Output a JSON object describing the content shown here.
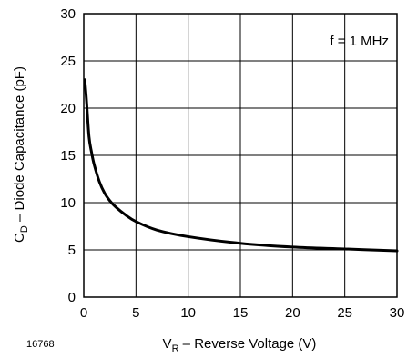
{
  "chart_data": {
    "type": "line",
    "title": "",
    "xlabel": {
      "main": "V",
      "sub": "R",
      "rest": " – Reverse Voltage (V)"
    },
    "ylabel": {
      "main": "C",
      "sub": "D",
      "rest": " – Diode Capacitance (pF)"
    },
    "xlim": [
      0,
      30
    ],
    "ylim": [
      0,
      30
    ],
    "xticks": [
      0,
      5,
      10,
      15,
      20,
      25,
      30
    ],
    "yticks": [
      0,
      5,
      10,
      15,
      20,
      25,
      30
    ],
    "xtick_labels": [
      "0",
      "5",
      "10",
      "15",
      "20",
      "25",
      "30"
    ],
    "ytick_labels": [
      "0",
      "5",
      "10",
      "15",
      "20",
      "25",
      "30"
    ],
    "grid": true,
    "annotation": "f = 1 MHz",
    "figure_id": "16768",
    "series": [
      {
        "color": "#000000",
        "x": [
          0.1,
          0.25,
          0.5,
          0.75,
          1,
          1.5,
          2,
          2.5,
          3,
          4,
          5,
          7,
          10,
          15,
          20,
          25,
          30
        ],
        "y": [
          23,
          21,
          17,
          15.3,
          14,
          12.2,
          11,
          10.2,
          9.6,
          8.7,
          8,
          7.1,
          6.4,
          5.7,
          5.3,
          5.1,
          4.9
        ]
      }
    ]
  }
}
